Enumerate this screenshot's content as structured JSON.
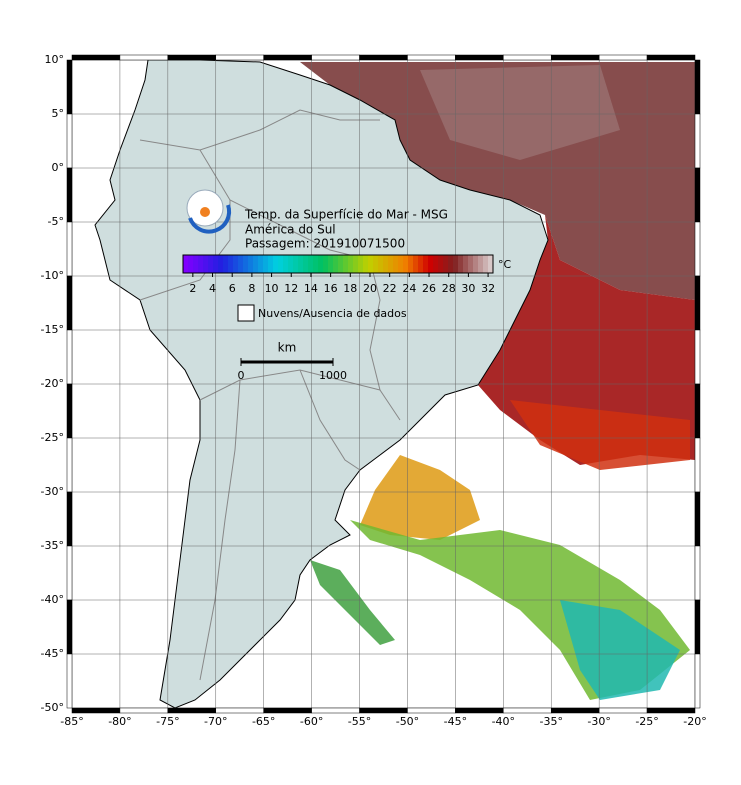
{
  "map": {
    "title_lines": [
      "Temp. da Superfície do Mar - MSG",
      "América do Sul",
      "Passagem: 201910071500"
    ],
    "colorbar": {
      "unit": "°C",
      "range": [
        1,
        32.5
      ],
      "ticks": [
        2,
        4,
        6,
        8,
        10,
        12,
        14,
        16,
        18,
        20,
        22,
        24,
        26,
        28,
        30,
        32
      ]
    },
    "legend": "Nuvens/Ausencia de dados",
    "scale_bar": {
      "unit": "km",
      "ticks": [
        0,
        1000
      ]
    },
    "lon_range": [
      -85,
      -20
    ],
    "lat_range": [
      -50,
      10
    ],
    "lon_ticks": [
      {
        "value": -85,
        "label": "-85°"
      },
      {
        "value": -80,
        "label": "-80°"
      },
      {
        "value": -75,
        "label": "-75°"
      },
      {
        "value": -70,
        "label": "-70°"
      },
      {
        "value": -65,
        "label": "-65°"
      },
      {
        "value": -60,
        "label": "-60°"
      },
      {
        "value": -55,
        "label": "-55°"
      },
      {
        "value": -50,
        "label": "-50°"
      },
      {
        "value": -45,
        "label": "-45°"
      },
      {
        "value": -40,
        "label": "-40°"
      },
      {
        "value": -35,
        "label": "-35°"
      },
      {
        "value": -30,
        "label": "-30°"
      },
      {
        "value": -25,
        "label": "-25°"
      },
      {
        "value": -20,
        "label": "-20°"
      }
    ],
    "lat_ticks": [
      {
        "value": 10,
        "label": "10°"
      },
      {
        "value": 5,
        "label": "5°"
      },
      {
        "value": 0,
        "label": "0°"
      },
      {
        "value": -5,
        "label": "-5°"
      },
      {
        "value": -10,
        "label": "-10°"
      },
      {
        "value": -15,
        "label": "-15°"
      },
      {
        "value": -20,
        "label": "-20°"
      },
      {
        "value": -25,
        "label": "-25°"
      },
      {
        "value": -30,
        "label": "-30°"
      },
      {
        "value": -35,
        "label": "-35°"
      },
      {
        "value": -40,
        "label": "-40°"
      },
      {
        "value": -45,
        "label": "-45°"
      },
      {
        "value": -50,
        "label": "-50°"
      }
    ]
  }
}
